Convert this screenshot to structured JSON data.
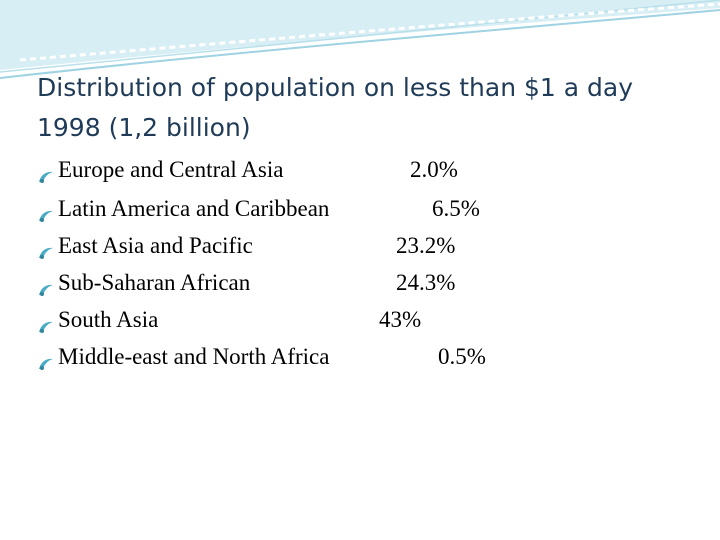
{
  "slide": {
    "title": "Distribution of population  on less than $1 a day 1998 (1,2 billion)",
    "items": [
      {
        "label": "Europe and Central Asia",
        "value": "2.0%"
      },
      {
        "label": "Latin America and Caribbean",
        "value": "6.5%"
      },
      {
        "label": "East Asia and Pacific",
        "value": "23.2%"
      },
      {
        "label": "Sub-Saharan African",
        "value": "24.3%"
      },
      {
        "label": "South Asia",
        "value": "43%"
      },
      {
        "label": "Middle-east and North Africa",
        "value": "0.5%"
      }
    ]
  }
}
